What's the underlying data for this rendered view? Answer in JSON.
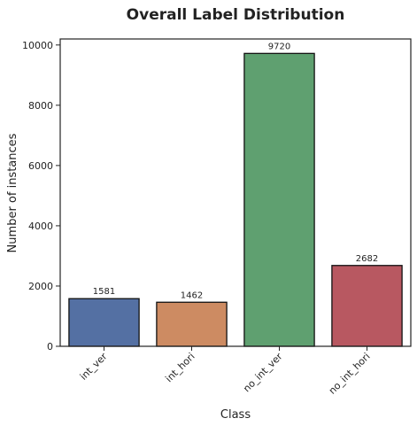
{
  "chart_data": {
    "type": "bar",
    "title": "Overall Label Distribution",
    "xlabel": "Class",
    "ylabel": "Number of instances",
    "categories": [
      "int_ver",
      "int_hori",
      "no_int_ver",
      "no_int_hori"
    ],
    "values": [
      1581,
      1462,
      9720,
      2682
    ],
    "data_labels": [
      "1581",
      "1462",
      "9720",
      "2682"
    ],
    "colors": [
      "#5470a3",
      "#cd8b62",
      "#5fa070",
      "#b85861"
    ],
    "ylim": [
      0,
      10200
    ],
    "yticks": [
      0,
      2000,
      4000,
      6000,
      8000,
      10000
    ],
    "ytick_labels": [
      "0",
      "2000",
      "4000",
      "6000",
      "8000",
      "10000"
    ],
    "grid": false,
    "legend": false
  }
}
